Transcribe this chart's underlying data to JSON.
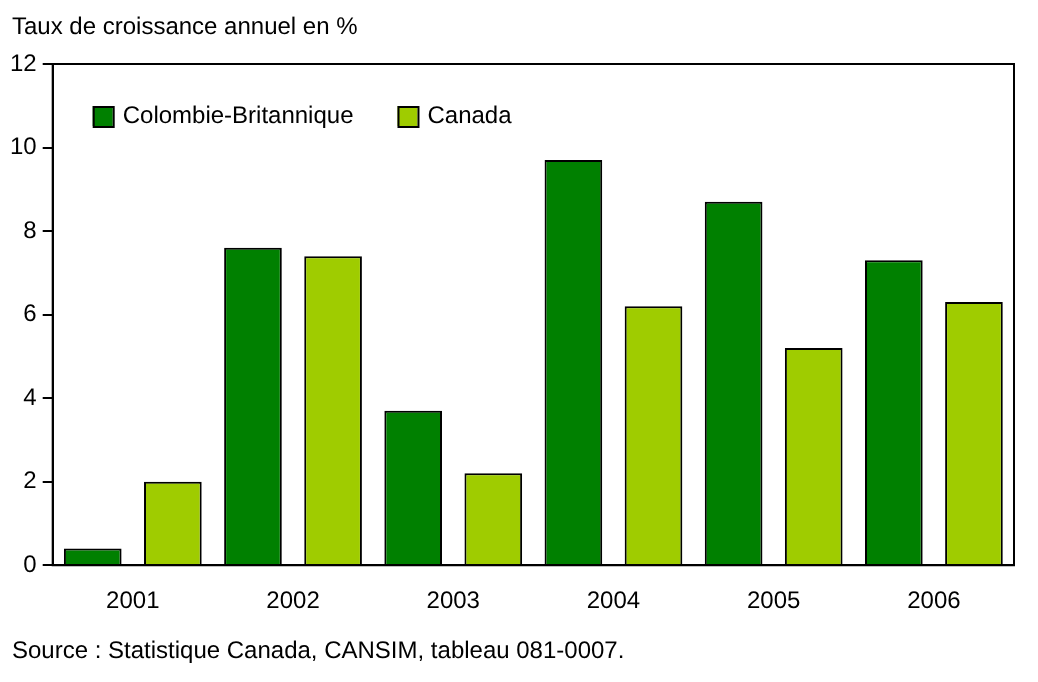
{
  "chart_data": {
    "type": "bar",
    "ylabel": "Taux de croissance annuel en %",
    "categories": [
      "2001",
      "2002",
      "2003",
      "2004",
      "2005",
      "2006"
    ],
    "series": [
      {
        "name": "Colombie-Britannique",
        "color": "#008000",
        "values": [
          0.4,
          7.6,
          3.7,
          9.7,
          8.7,
          7.3
        ]
      },
      {
        "name": "Canada",
        "color": "#9fcc00",
        "values": [
          2.0,
          7.4,
          2.2,
          6.2,
          5.2,
          6.3
        ]
      }
    ],
    "ylim": [
      0,
      12
    ],
    "yticks": [
      0,
      2,
      4,
      6,
      8,
      10,
      12
    ],
    "grid": false,
    "legend": "top left",
    "annotations": [
      "Source : Statistique Canada, CANSIM, tableau 081-0007."
    ]
  }
}
